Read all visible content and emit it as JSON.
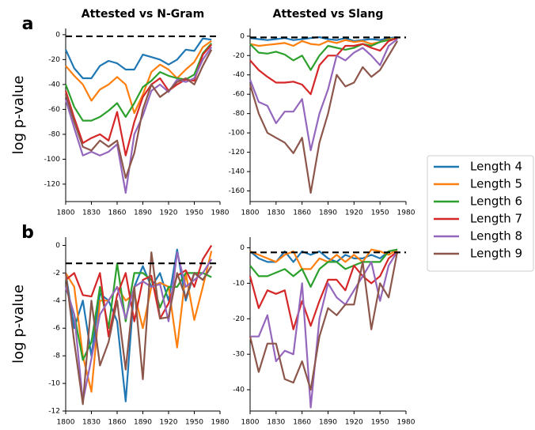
{
  "chart_data": [
    {
      "type": "line",
      "panel_label": "a",
      "title": "Attested vs N-Gram",
      "ylabel": "log p-value",
      "legend": "center right",
      "hline": -1.3,
      "x": [
        1800,
        1810,
        1820,
        1830,
        1840,
        1850,
        1860,
        1870,
        1880,
        1890,
        1900,
        1910,
        1920,
        1930,
        1940,
        1950,
        1960,
        1970
      ],
      "xlim": [
        1800,
        1980
      ],
      "xticks": [
        1800,
        1830,
        1860,
        1890,
        1920,
        1950,
        1980
      ],
      "ylim": [
        -134,
        5
      ],
      "yticks": [
        0,
        -20,
        -40,
        -60,
        -80,
        -100,
        -120
      ],
      "series": [
        {
          "name": "Length 4",
          "color": "#1f77b4",
          "values": [
            -12,
            -27,
            -35,
            -35,
            -25,
            -21,
            -23,
            -28,
            -28,
            -16,
            -18,
            -20,
            -24,
            -20,
            -12,
            -13,
            -3,
            -4
          ]
        },
        {
          "name": "Length 5",
          "color": "#ff7f0e",
          "values": [
            -25,
            -33,
            -40,
            -53,
            -44,
            -40,
            -34,
            -40,
            -63,
            -48,
            -30,
            -24,
            -28,
            -35,
            -28,
            -22,
            -10,
            -5
          ]
        },
        {
          "name": "Length 6",
          "color": "#2ca02c",
          "values": [
            -40,
            -58,
            -69,
            -69,
            -66,
            -61,
            -55,
            -66,
            -55,
            -42,
            -37,
            -30,
            -33,
            -35,
            -36,
            -32,
            -15,
            -7
          ]
        },
        {
          "name": "Length 7",
          "color": "#d62728",
          "values": [
            -45,
            -67,
            -87,
            -83,
            -80,
            -85,
            -62,
            -97,
            -70,
            -50,
            -40,
            -35,
            -45,
            -40,
            -36,
            -37,
            -16,
            -8
          ]
        },
        {
          "name": "Length 8",
          "color": "#9467bd",
          "values": [
            -52,
            -75,
            -97,
            -94,
            -97,
            -94,
            -88,
            -127,
            -80,
            -65,
            -45,
            -40,
            -46,
            -36,
            -38,
            -35,
            -20,
            -10
          ]
        },
        {
          "name": "Length 9",
          "color": "#8c564b",
          "values": [
            -48,
            -70,
            -90,
            -93,
            -85,
            -90,
            -85,
            -115,
            -95,
            -60,
            -40,
            -50,
            -45,
            -38,
            -35,
            -40,
            -25,
            -12
          ]
        }
      ]
    },
    {
      "type": "line",
      "title": "Attested vs Slang",
      "hline": -1.3,
      "x": [
        1800,
        1810,
        1820,
        1830,
        1840,
        1850,
        1860,
        1870,
        1880,
        1890,
        1900,
        1910,
        1920,
        1930,
        1940,
        1950,
        1960,
        1970
      ],
      "xlim": [
        1800,
        1980
      ],
      "xticks": [
        1800,
        1830,
        1860,
        1890,
        1920,
        1950,
        1980
      ],
      "ylim": [
        -171,
        8
      ],
      "yticks": [
        0,
        -20,
        -40,
        -60,
        -80,
        -100,
        -120,
        -140,
        -160
      ],
      "series": [
        {
          "name": "Length 4",
          "color": "#1f77b4",
          "values": [
            -2,
            -3,
            -4,
            -3,
            -2,
            -4,
            -3,
            -2,
            -1,
            -3,
            -4,
            -2,
            -5,
            -4,
            -3,
            -4,
            -2,
            -1
          ]
        },
        {
          "name": "Length 5",
          "color": "#ff7f0e",
          "values": [
            -8,
            -10,
            -9,
            -8,
            -7,
            -10,
            -5,
            -8,
            -9,
            -5,
            -7,
            -4,
            -6,
            -5,
            -8,
            -6,
            -3,
            -2
          ]
        },
        {
          "name": "Length 6",
          "color": "#2ca02c",
          "values": [
            -8,
            -17,
            -18,
            -16,
            -19,
            -25,
            -20,
            -35,
            -20,
            -10,
            -12,
            -14,
            -12,
            -8,
            -10,
            -6,
            -4,
            -2
          ]
        },
        {
          "name": "Length 7",
          "color": "#d62728",
          "values": [
            -25,
            -35,
            -42,
            -48,
            -48,
            -47,
            -50,
            -60,
            -30,
            -20,
            -20,
            -10,
            -10,
            -8,
            -12,
            -15,
            -5,
            -2
          ]
        },
        {
          "name": "Length 8",
          "color": "#9467bd",
          "values": [
            -45,
            -68,
            -72,
            -90,
            -78,
            -78,
            -65,
            -118,
            -80,
            -55,
            -20,
            -25,
            -17,
            -12,
            -20,
            -30,
            -10,
            -3
          ]
        },
        {
          "name": "Length 9",
          "color": "#8c564b",
          "values": [
            -50,
            -80,
            -100,
            -105,
            -110,
            -121,
            -105,
            -162,
            -110,
            -80,
            -40,
            -52,
            -48,
            -32,
            -42,
            -35,
            -20,
            -5
          ]
        }
      ]
    },
    {
      "type": "line",
      "panel_label": "b",
      "ylabel": "log p-value",
      "hline": -1.3,
      "x": [
        1800,
        1810,
        1820,
        1830,
        1840,
        1850,
        1860,
        1870,
        1880,
        1890,
        1900,
        1910,
        1920,
        1930,
        1940,
        1950,
        1960,
        1970
      ],
      "xlim": [
        1800,
        1980
      ],
      "xticks": [
        1800,
        1830,
        1860,
        1890,
        1920,
        1950,
        1980
      ],
      "ylim": [
        -12,
        0.6
      ],
      "yticks": [
        0,
        -2,
        -4,
        -6,
        -8,
        -10,
        -12
      ],
      "series": [
        {
          "name": "Length 4",
          "color": "#1f77b4",
          "values": [
            -2,
            -6,
            -4,
            -8,
            -3.5,
            -4,
            -5.5,
            -11.3,
            -3,
            -1.5,
            -3,
            -2,
            -4,
            -0.3,
            -4,
            -2,
            -2.5,
            -1.5
          ]
        },
        {
          "name": "Length 5",
          "color": "#ff7f0e",
          "values": [
            -2,
            -3,
            -8,
            -10.6,
            -4,
            -4,
            -3,
            -4,
            -3.5,
            -6,
            -3,
            -2.7,
            -3,
            -7.4,
            -2,
            -5.4,
            -3,
            -0.4
          ]
        },
        {
          "name": "Length 6",
          "color": "#2ca02c",
          "values": [
            -3,
            -5,
            -8.3,
            -7,
            -3,
            -6,
            -1.3,
            -5.5,
            -2,
            -2,
            -2.5,
            -4.5,
            -3,
            -3,
            -2,
            -2,
            -2,
            -2.3
          ]
        },
        {
          "name": "Length 7",
          "color": "#d62728",
          "values": [
            -2.5,
            -2,
            -3.6,
            -3.7,
            -2,
            -6.6,
            -3.6,
            -2,
            -5.5,
            -2.5,
            -2.2,
            -5.3,
            -4.2,
            -2.2,
            -1.8,
            -3,
            -1,
            0
          ]
        },
        {
          "name": "Length 8",
          "color": "#9467bd",
          "values": [
            -3,
            -5,
            -11.3,
            -8.2,
            -5,
            -4,
            -3,
            -5.3,
            -3,
            -2.6,
            -3,
            -2.8,
            -5.5,
            -0.5,
            -3,
            -2.5,
            -2,
            -1
          ]
        },
        {
          "name": "Length 9",
          "color": "#8c564b",
          "values": [
            -2,
            -7,
            -11.5,
            -4,
            -8.7,
            -7,
            -4,
            -9,
            -3,
            -9.7,
            -0.5,
            -5.3,
            -5.2,
            -2,
            -3.8,
            -2,
            -2.5,
            -1.5
          ]
        }
      ]
    },
    {
      "type": "line",
      "hline": -1.3,
      "x": [
        1800,
        1810,
        1820,
        1830,
        1840,
        1850,
        1860,
        1870,
        1880,
        1890,
        1900,
        1910,
        1920,
        1930,
        1940,
        1950,
        1960,
        1970
      ],
      "xlim": [
        1800,
        1980
      ],
      "xticks": [
        1800,
        1830,
        1860,
        1890,
        1920,
        1950,
        1980
      ],
      "ylim": [
        -46,
        3
      ],
      "yticks": [
        0,
        -10,
        -20,
        -30,
        -40
      ],
      "series": [
        {
          "name": "Length 4",
          "color": "#1f77b4",
          "values": [
            -1,
            -3,
            -4,
            -4,
            -1,
            -4,
            -1,
            -2,
            -1,
            -3,
            -4,
            -2,
            -3,
            -3,
            -2,
            -3,
            -1,
            -0.5
          ]
        },
        {
          "name": "Length 5",
          "color": "#ff7f0e",
          "values": [
            -1,
            -2,
            -3,
            -4,
            -2,
            -1,
            -6,
            -6,
            -3,
            -4,
            -2,
            -4,
            -2,
            -4,
            -0.5,
            -1,
            -2,
            -0.5
          ]
        },
        {
          "name": "Length 6",
          "color": "#2ca02c",
          "values": [
            -5,
            -8,
            -8,
            -7,
            -6,
            -8,
            -6,
            -11,
            -6,
            -4,
            -4,
            -6,
            -5,
            -4,
            -4,
            -4,
            -1,
            -0.5
          ]
        },
        {
          "name": "Length 7",
          "color": "#d62728",
          "values": [
            -8,
            -17,
            -12,
            -13,
            -12,
            -23,
            -15,
            -22,
            -15,
            -9,
            -9,
            -12,
            -5,
            -8,
            -10,
            -8,
            -3,
            -1
          ]
        },
        {
          "name": "Length 8",
          "color": "#9467bd",
          "values": [
            -25,
            -25,
            -19,
            -32,
            -29,
            -30,
            -10,
            -45,
            -20,
            -10,
            -14,
            -16,
            -12,
            -8,
            -4,
            -15,
            -5,
            -1
          ]
        },
        {
          "name": "Length 9",
          "color": "#8c564b",
          "values": [
            -25,
            -35,
            -27,
            -27,
            -37,
            -38,
            -32,
            -40,
            -25,
            -17,
            -19,
            -16,
            -16,
            -4,
            -23,
            -10,
            -14,
            -1
          ]
        }
      ]
    }
  ]
}
